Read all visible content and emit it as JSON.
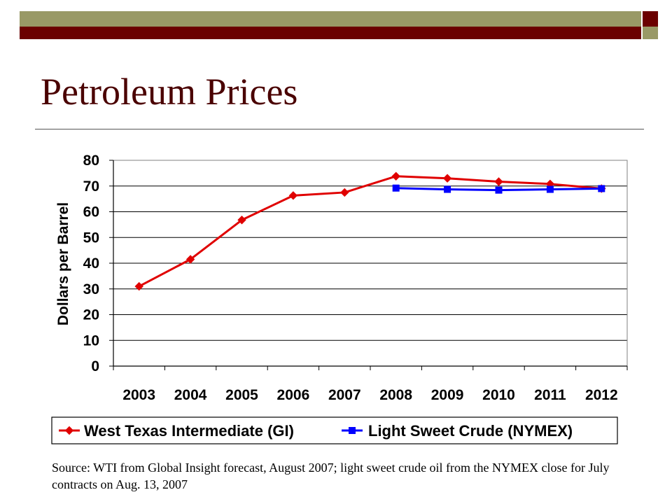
{
  "slide": {
    "title": "Petroleum Prices",
    "source": "Source: WTI from Global Insight forecast, August 2007; light sweet crude oil from the NYMEX close for July contracts on Aug. 13, 2007"
  },
  "colors": {
    "olive": "#999966",
    "maroon": "#6b0000",
    "title": "#4a0000",
    "wti": "#e00000",
    "nymex": "#0000ff"
  },
  "chart_data": {
    "type": "line",
    "title": "",
    "xlabel": "",
    "ylabel": "Dollars per Barrel",
    "ylim": [
      0,
      80
    ],
    "yticks": [
      "0",
      "10",
      "20",
      "30",
      "40",
      "50",
      "60",
      "70",
      "80"
    ],
    "grid": true,
    "legend_position": "bottom",
    "categories": [
      "2003",
      "2004",
      "2005",
      "2006",
      "2007",
      "2008",
      "2009",
      "2010",
      "2011",
      "2012"
    ],
    "series": [
      {
        "name": "West Texas Intermediate (GI)",
        "marker": "diamond",
        "color": "#e00000",
        "values": [
          31,
          41.5,
          56.8,
          66.3,
          67.5,
          73.8,
          73.0,
          71.7,
          70.8,
          69.0
        ]
      },
      {
        "name": "Light Sweet Crude (NYMEX)",
        "marker": "square",
        "color": "#0000ff",
        "values": [
          null,
          null,
          null,
          null,
          null,
          69.2,
          68.7,
          68.4,
          68.7,
          69.0
        ]
      }
    ]
  }
}
